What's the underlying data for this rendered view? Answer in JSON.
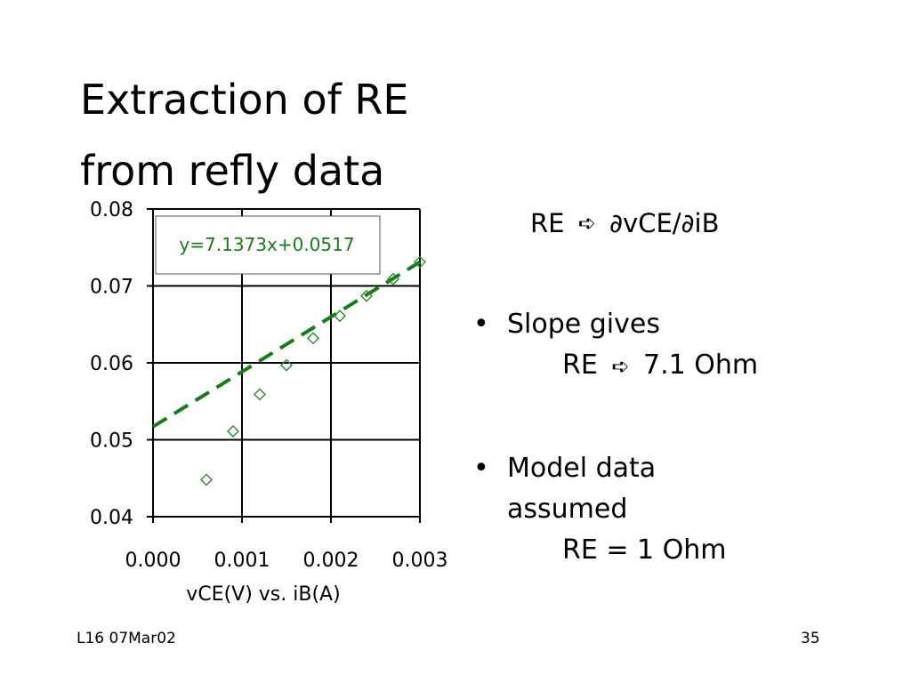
{
  "slide": {
    "title_line1": "Extraction of RE",
    "title_line2": "from refly data",
    "formula": {
      "lhs": "RE",
      "arrow_icon": "right-arrow-icon",
      "rhs": "∂vCE/∂iB"
    },
    "bullets": [
      {
        "text": "Slope gives",
        "detail_label": "RE",
        "detail_value": "7.1 Ohm"
      },
      {
        "text_line1": "Model data",
        "text_line2": "assumed",
        "detail": "RE = 1 Ohm"
      }
    ],
    "footer_left": "L16 07Mar02",
    "footer_right": "35"
  },
  "chart_data": {
    "type": "scatter",
    "xlabel": "vCE(V) vs. iB(A)",
    "ylabel": "",
    "xlim": [
      0,
      0.003
    ],
    "ylim": [
      0.04,
      0.08
    ],
    "x_ticks": [
      "0.000",
      "0.001",
      "0.002",
      "0.003"
    ],
    "y_ticks": [
      "0.04",
      "0.05",
      "0.06",
      "0.07",
      "0.08"
    ],
    "grid": true,
    "trendline": {
      "equation": "y=7.1373x+0.0517",
      "slope": 7.1373,
      "intercept": 0.0517
    },
    "points": [
      {
        "x": 0.0006,
        "y": 0.0448
      },
      {
        "x": 0.0009,
        "y": 0.0511
      },
      {
        "x": 0.0012,
        "y": 0.0559
      },
      {
        "x": 0.0015,
        "y": 0.0597
      },
      {
        "x": 0.0018,
        "y": 0.0632
      },
      {
        "x": 0.0021,
        "y": 0.0661
      },
      {
        "x": 0.0024,
        "y": 0.0687
      },
      {
        "x": 0.0027,
        "y": 0.0709
      },
      {
        "x": 0.003,
        "y": 0.0731
      }
    ],
    "colors": {
      "marker": "#2a8a2a",
      "trendline": "#1a7a1a",
      "axis": "#000000"
    }
  }
}
